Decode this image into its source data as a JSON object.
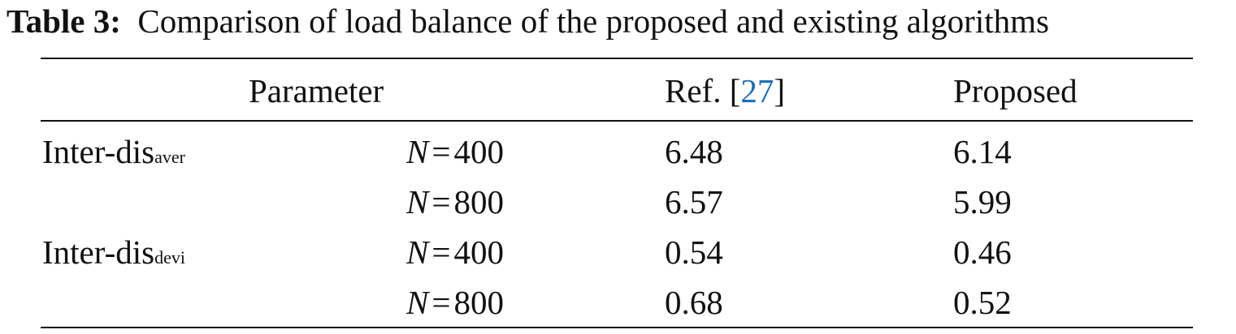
{
  "caption": {
    "label": "Table 3:",
    "text": "Comparison of load balance of the proposed and existing algorithms"
  },
  "table": {
    "header": {
      "parameter": "Parameter",
      "ref_open": "Ref. [",
      "ref_number": "27",
      "ref_close": "]",
      "proposed": "Proposed"
    },
    "rows": [
      {
        "group": "Inter-dis",
        "group_sub": "aver",
        "variable": "N",
        "relation": "=",
        "n": 400,
        "ref": 6.48,
        "proposed": 6.14
      },
      {
        "variable": "N",
        "relation": "=",
        "n": 800,
        "ref": 6.57,
        "proposed": 5.99
      },
      {
        "group": "Inter-dis",
        "group_sub": "devi",
        "variable": "N",
        "relation": "=",
        "n": 400,
        "ref": 0.54,
        "proposed": 0.46
      },
      {
        "variable": "N",
        "relation": "=",
        "n": 800,
        "ref": 0.68,
        "proposed": 0.52
      }
    ]
  }
}
